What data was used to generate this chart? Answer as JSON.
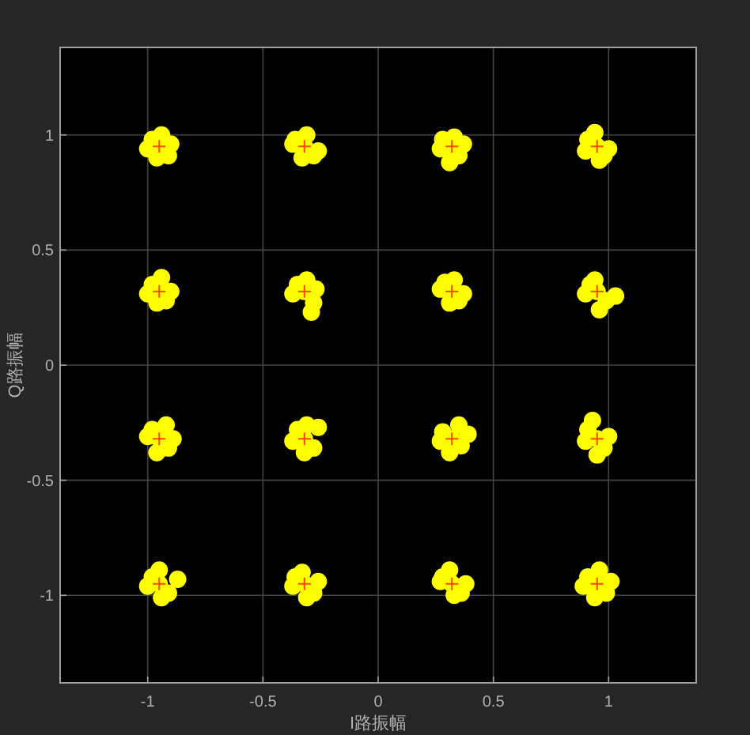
{
  "chart_data": {
    "type": "scatter",
    "xlabel": "I路振幅",
    "ylabel": "Q路振幅",
    "xlim": [
      -1.38,
      1.38
    ],
    "ylim": [
      -1.38,
      1.38
    ],
    "xticks": [
      -1,
      -0.5,
      0,
      0.5,
      1
    ],
    "yticks": [
      -1,
      -0.5,
      0,
      0.5,
      1
    ],
    "grid": true,
    "series": [
      {
        "color": "#ffff00",
        "marker": "circle",
        "x": [
          -0.95,
          -0.9,
          -1.0,
          -0.94,
          -0.96,
          -0.91,
          -0.98,
          -0.32,
          -0.26,
          -0.37,
          -0.31,
          -0.33,
          -0.28,
          -0.36,
          0.32,
          0.37,
          0.27,
          0.33,
          0.31,
          0.35,
          0.28,
          0.95,
          1.0,
          0.9,
          0.94,
          0.96,
          0.98,
          0.91,
          -0.95,
          -0.9,
          -1.0,
          -0.94,
          -0.96,
          -0.92,
          -0.98,
          -0.32,
          -0.27,
          -0.37,
          -0.31,
          -0.29,
          -0.28,
          -0.35,
          0.32,
          0.37,
          0.27,
          0.33,
          0.31,
          0.35,
          0.29,
          0.95,
          1.03,
          0.9,
          0.94,
          0.96,
          0.99,
          0.92,
          -0.95,
          -0.89,
          -1.0,
          -0.92,
          -0.96,
          -0.91,
          -0.98,
          -0.32,
          -0.26,
          -0.37,
          -0.31,
          -0.32,
          -0.28,
          -0.35,
          0.32,
          0.39,
          0.27,
          0.35,
          0.31,
          0.36,
          0.28,
          0.95,
          1.0,
          0.9,
          0.93,
          0.95,
          0.98,
          0.91,
          -0.95,
          -0.87,
          -1.0,
          -0.95,
          -0.94,
          -0.91,
          -0.98,
          -0.32,
          -0.26,
          -0.37,
          -0.33,
          -0.31,
          -0.28,
          -0.36,
          0.32,
          0.38,
          0.27,
          0.31,
          0.33,
          0.36,
          0.28,
          0.95,
          1.01,
          0.89,
          0.96,
          0.94,
          0.99,
          0.91
        ],
        "values": [
          0.95,
          0.96,
          0.94,
          1.0,
          0.9,
          0.91,
          0.98,
          0.95,
          0.93,
          0.96,
          1.0,
          0.9,
          0.91,
          0.98,
          0.95,
          0.96,
          0.94,
          0.99,
          0.88,
          0.91,
          0.98,
          0.95,
          0.94,
          0.93,
          1.01,
          0.89,
          0.91,
          0.98,
          0.32,
          0.32,
          0.31,
          0.38,
          0.27,
          0.28,
          0.35,
          0.32,
          0.33,
          0.31,
          0.37,
          0.23,
          0.27,
          0.35,
          0.32,
          0.31,
          0.33,
          0.37,
          0.27,
          0.28,
          0.36,
          0.32,
          0.3,
          0.31,
          0.37,
          0.24,
          0.28,
          0.35,
          -0.32,
          -0.32,
          -0.31,
          -0.26,
          -0.38,
          -0.36,
          -0.28,
          -0.32,
          -0.27,
          -0.33,
          -0.26,
          -0.38,
          -0.36,
          -0.28,
          -0.32,
          -0.3,
          -0.33,
          -0.26,
          -0.38,
          -0.35,
          -0.29,
          -0.32,
          -0.31,
          -0.33,
          -0.24,
          -0.39,
          -0.36,
          -0.28,
          -0.95,
          -0.93,
          -0.96,
          -0.89,
          -1.01,
          -0.99,
          -0.92,
          -0.95,
          -0.94,
          -0.96,
          -0.9,
          -1.01,
          -0.99,
          -0.92,
          -0.95,
          -0.95,
          -0.94,
          -0.89,
          -1.0,
          -0.99,
          -0.92,
          -0.95,
          -0.94,
          -0.96,
          -0.89,
          -1.01,
          -0.99,
          -0.92
        ]
      },
      {
        "color": "#ff4500",
        "marker": "cross",
        "x": [
          -0.95,
          -0.32,
          0.32,
          0.95,
          -0.95,
          -0.32,
          0.32,
          0.95,
          -0.95,
          -0.32,
          0.32,
          0.95,
          -0.95,
          -0.32,
          0.32,
          0.95
        ],
        "values": [
          0.95,
          0.95,
          0.95,
          0.95,
          0.32,
          0.32,
          0.32,
          0.32,
          -0.32,
          -0.32,
          -0.32,
          -0.32,
          -0.95,
          -0.95,
          -0.95,
          -0.95
        ]
      }
    ]
  }
}
